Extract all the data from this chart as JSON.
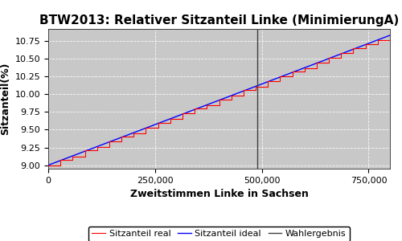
{
  "title": "BTW2013: Relativer Sitzanteil Linke (MinimierungA)",
  "xlabel": "Zweitstimmen Linke in Sachsen",
  "ylabel": "Sitzanteil(%)",
  "xlim": [
    0,
    800000
  ],
  "ylim": [
    8.95,
    10.92
  ],
  "yticks": [
    9.0,
    9.25,
    9.5,
    9.75,
    10.0,
    10.25,
    10.5,
    10.75
  ],
  "xticks": [
    0,
    250000,
    500000,
    750000
  ],
  "xtick_labels": [
    "0",
    "250,000",
    "500,000",
    "750,000"
  ],
  "wahlergebnis_x": 490000,
  "background_color": "#c8c8c8",
  "figure_background": "#ffffff",
  "legend_labels": [
    "Sitzanteil real",
    "Sitzanteil ideal",
    "Wahlergebnis"
  ],
  "title_fontsize": 11,
  "axis_label_fontsize": 9,
  "tick_fontsize": 8,
  "y_start": 9.0,
  "y_end": 10.83,
  "n_steps": 28,
  "total_x": 800000,
  "step_offsets": [
    0.0,
    0.08,
    -0.03,
    0.06,
    -0.04,
    0.05,
    0.07,
    -0.05,
    0.04,
    0.06,
    -0.03,
    0.05,
    0.08,
    -0.04,
    0.06,
    0.03,
    0.07,
    -0.05,
    0.04,
    0.06,
    0.08,
    -0.03,
    0.05,
    0.04,
    0.06,
    0.07,
    0.05,
    0.0
  ]
}
